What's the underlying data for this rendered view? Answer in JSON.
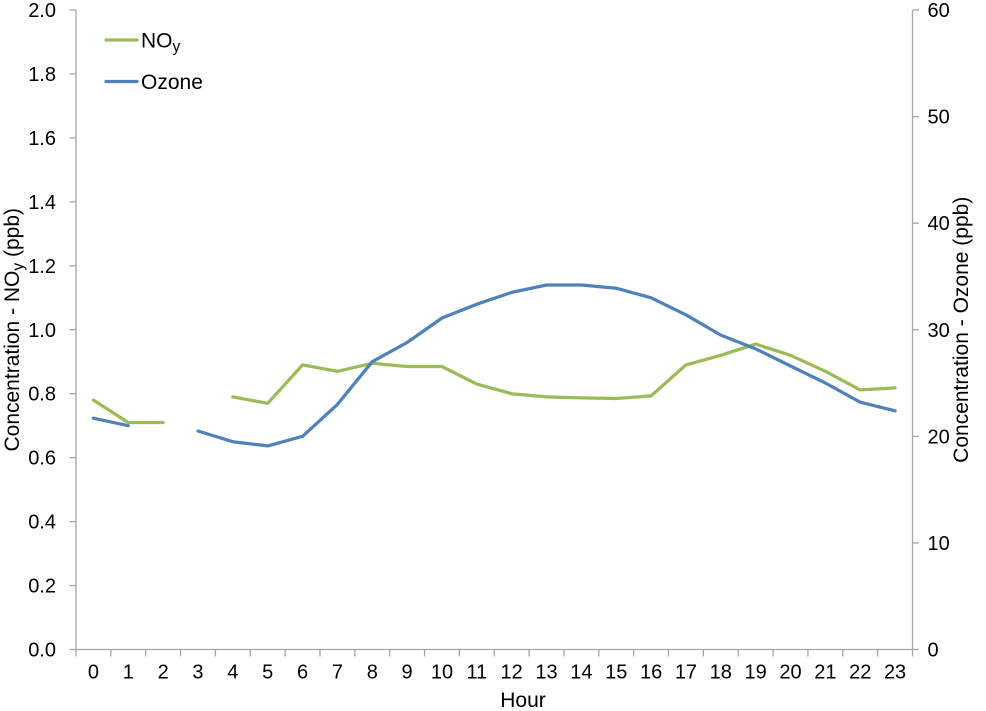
{
  "chart_data": {
    "type": "line",
    "title": "",
    "xlabel": "Hour",
    "x": [
      0,
      1,
      2,
      3,
      4,
      5,
      6,
      7,
      8,
      9,
      10,
      11,
      12,
      13,
      14,
      15,
      16,
      17,
      18,
      19,
      20,
      21,
      22,
      23
    ],
    "x_tick_labels": [
      "0",
      "1",
      "2",
      "3",
      "4",
      "5",
      "6",
      "7",
      "8",
      "9",
      "10",
      "11",
      "12",
      "13",
      "14",
      "15",
      "16",
      "17",
      "18",
      "19",
      "20",
      "21",
      "22",
      "23"
    ],
    "series": [
      {
        "name": "NOy",
        "axis": "left",
        "color": "#9BBB59",
        "values": [
          0.78,
          0.71,
          0.71,
          null,
          0.79,
          0.77,
          0.89,
          0.87,
          0.895,
          0.885,
          0.885,
          0.83,
          0.8,
          0.79,
          0.787,
          0.785,
          0.793,
          0.89,
          0.92,
          0.955,
          0.92,
          0.87,
          0.812,
          0.818
        ]
      },
      {
        "name": "Ozone",
        "axis": "right",
        "color": "#4F81BD",
        "values": [
          21.7,
          21.0,
          null,
          20.5,
          19.5,
          19.1,
          20.0,
          23.0,
          27.0,
          28.8,
          31.1,
          32.4,
          33.5,
          34.2,
          34.2,
          33.9,
          33.0,
          31.4,
          29.5,
          28.2,
          26.6,
          25.0,
          23.2,
          22.4
        ]
      }
    ],
    "left_axis": {
      "title_pre": "Concentration - NO",
      "title_sub": "y",
      "title_post": " (ppb)",
      "min": 0,
      "max": 2,
      "step": 0.2,
      "decimals": 1
    },
    "right_axis": {
      "title": "Concentration - Ozone (ppb)",
      "min": 0,
      "max": 60,
      "step": 10,
      "decimals": 0
    },
    "legend": {
      "position": "top-left",
      "items": [
        {
          "label_pre": "NO",
          "label_sub": "y",
          "series": "NOy"
        },
        {
          "label_pre": "Ozone",
          "label_sub": "",
          "series": "Ozone"
        }
      ]
    },
    "grid": false,
    "axis_line_color": "#A6A6A6",
    "text_color": "#000000"
  }
}
